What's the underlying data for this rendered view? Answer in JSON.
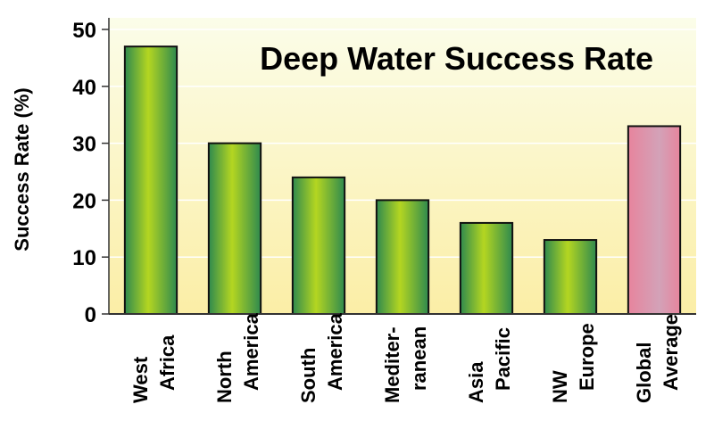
{
  "chart_data": {
    "type": "bar",
    "title": "Deep Water Success Rate",
    "ylabel": "Success Rate (%)",
    "xlabel": "",
    "ylim": [
      0,
      50
    ],
    "yticks": [
      0,
      10,
      20,
      30,
      40,
      50
    ],
    "grid": true,
    "categories": [
      [
        "West",
        "Africa"
      ],
      [
        "North",
        "America"
      ],
      [
        "South",
        "America"
      ],
      [
        "Mediter-",
        "ranean"
      ],
      [
        "Asia",
        "Pacific"
      ],
      [
        "NW",
        "Europe"
      ],
      [
        "Global",
        "Average"
      ]
    ],
    "values": [
      47,
      30,
      24,
      20,
      16,
      13,
      33
    ],
    "highlight_index": 6,
    "colors": {
      "bar_edge": "#2f8a4e",
      "bar_center": "#b4d621",
      "highlight_edge": "#e7849d",
      "highlight_center": "#d3a2b8",
      "background_top": "#fbfde9",
      "background_bottom": "#fbeea6"
    }
  }
}
